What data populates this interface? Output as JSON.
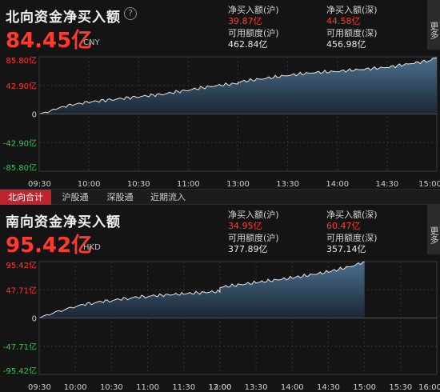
{
  "north": {
    "title": "北向资金净买入额",
    "help_icon": "?",
    "amount": "84.45亿",
    "unit": "CNY",
    "stats": {
      "buy_sh_label": "净买入额(沪)",
      "buy_sh_value": "39.87亿",
      "buy_sz_label": "净买入额(深)",
      "buy_sz_value": "44.58亿",
      "avail_sh_label": "可用额度(沪)",
      "avail_sh_value": "462.84亿",
      "avail_sz_label": "可用额度(深)",
      "avail_sz_value": "456.98亿"
    },
    "more_label": "更多"
  },
  "tabs": [
    "北向合计",
    "沪股通",
    "深股通",
    "近期流入"
  ],
  "south": {
    "title": "南向资金净买入额",
    "amount": "95.42亿",
    "unit": "HKD",
    "stats": {
      "buy_sh_label": "净买入额(沪)",
      "buy_sh_value": "34.95亿",
      "buy_sz_label": "净买入额(深)",
      "buy_sz_value": "60.47亿",
      "avail_sh_label": "可用额度(沪)",
      "avail_sh_value": "377.89亿",
      "avail_sz_label": "可用额度(深)",
      "avail_sz_value": "357.14亿"
    },
    "more_label": "更多"
  },
  "colors": {
    "accent_red": "#ff3b30",
    "area_fill_top": "#4a6f8e",
    "area_fill_bottom": "#1b2633",
    "line": "#e6e6e6",
    "tab_active": "#c0232b"
  },
  "chart_data": [
    {
      "type": "area",
      "title": "北向资金净买入额",
      "y_ticks": [
        "85.80亿",
        "42.90亿",
        "0",
        "-42.90亿",
        "-85.80亿"
      ],
      "ylim": [
        -85.8,
        85.8
      ],
      "x_ticks": [
        "09:30",
        "10:00",
        "10:30",
        "11:00",
        "13:00",
        "13:30",
        "14:00",
        "14:30",
        "15:00"
      ],
      "x": [
        "09:30",
        "09:35",
        "09:40",
        "09:50",
        "10:00",
        "10:15",
        "10:30",
        "10:45",
        "11:00",
        "11:15",
        "11:30",
        "13:00",
        "13:15",
        "13:30",
        "13:45",
        "14:00",
        "14:15",
        "14:30",
        "14:45",
        "14:55",
        "15:00"
      ],
      "y": [
        0,
        3,
        8,
        14,
        18,
        22,
        26,
        30,
        36,
        42,
        46,
        48,
        53,
        58,
        62,
        64,
        67,
        70,
        76,
        80,
        84.45
      ],
      "grid": true
    },
    {
      "type": "area",
      "title": "南向资金净买入额",
      "y_ticks": [
        "95.42亿",
        "47.71亿",
        "0",
        "-47.71亿",
        "-95.42亿"
      ],
      "ylim": [
        -95.42,
        95.42
      ],
      "x_ticks": [
        "09:30",
        "10:00",
        "10:30",
        "11:00",
        "11:30",
        "12:00",
        "13:00",
        "13:30",
        "14:00",
        "14:30",
        "15:00",
        "15:30",
        "16:00"
      ],
      "x": [
        "09:30",
        "09:40",
        "09:50",
        "10:00",
        "10:15",
        "10:30",
        "10:45",
        "11:00",
        "11:30",
        "12:00",
        "13:00",
        "13:30",
        "14:00",
        "14:30",
        "14:50",
        "15:00"
      ],
      "y": [
        0,
        8,
        14,
        20,
        26,
        30,
        34,
        37,
        41,
        45,
        52,
        60,
        68,
        78,
        88,
        95.42
      ],
      "grid": true
    }
  ]
}
